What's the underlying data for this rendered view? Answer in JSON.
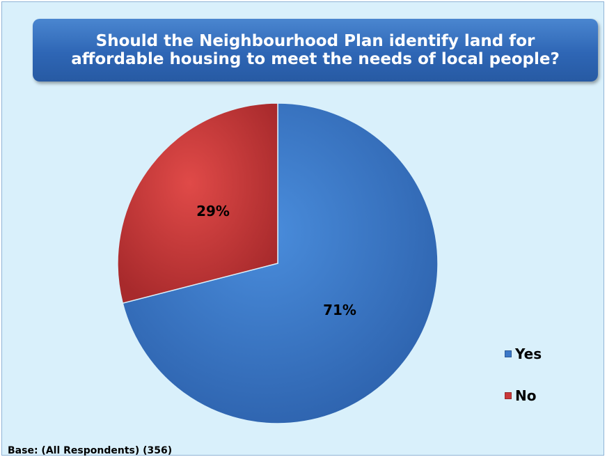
{
  "chart_data": {
    "type": "pie",
    "title": "Should the Neighbourhood Plan identify land for\naffordable housing to meet the needs of local people?",
    "slices": [
      {
        "name": "Yes",
        "value": 71,
        "label": "71%",
        "color": "#3b78c8"
      },
      {
        "name": "No",
        "value": 29,
        "label": "29%",
        "color": "#c9383a"
      }
    ],
    "start": "12 o'clock, clockwise",
    "legend": {
      "placement": "right"
    }
  },
  "footer": {
    "base_text": "Base: (All Respondents) (356)"
  }
}
